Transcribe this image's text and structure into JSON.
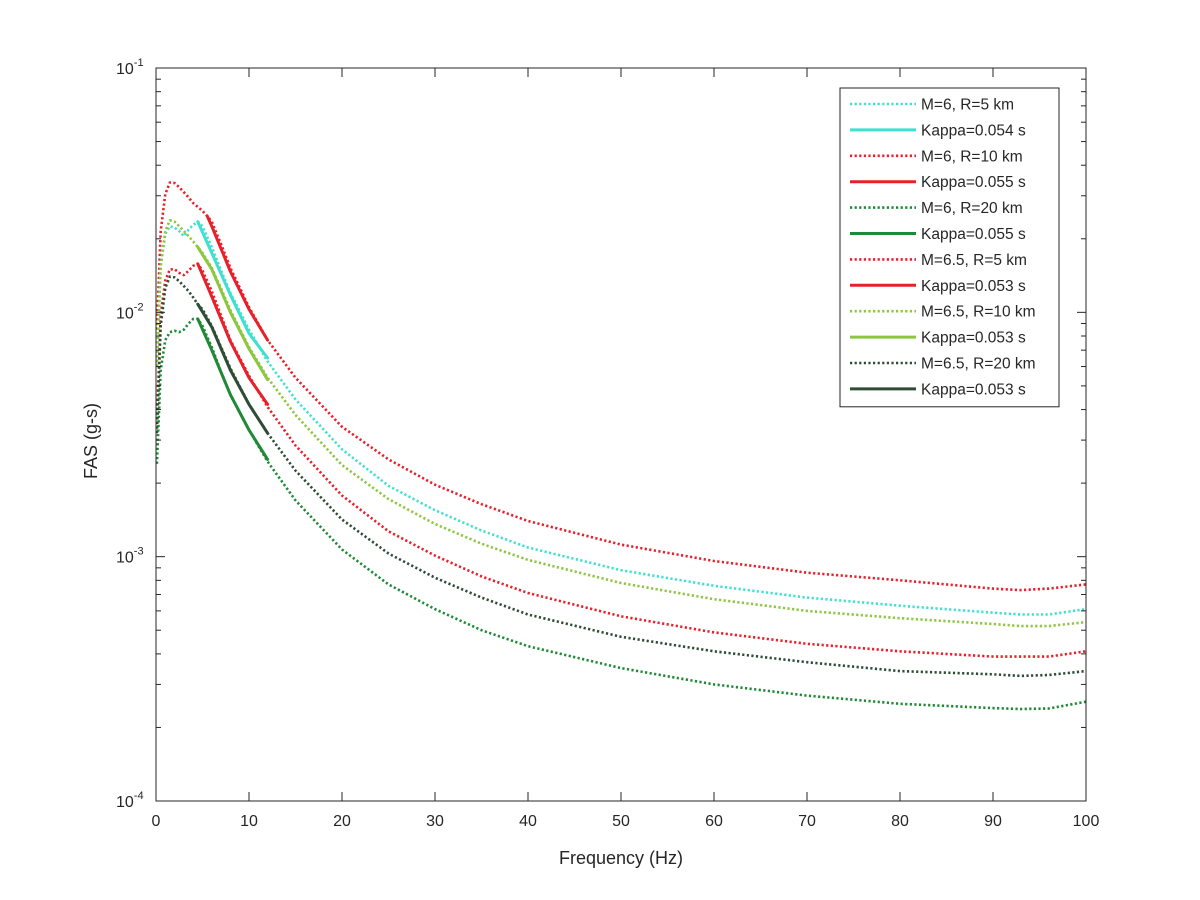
{
  "chart_data": {
    "type": "line",
    "title": "",
    "xlabel": "Frequency (Hz)",
    "ylabel": "FAS (g-s)",
    "yscale": "log",
    "xlim": [
      0,
      100
    ],
    "ylim": [
      0.0001,
      0.1
    ],
    "xticks": [
      0,
      10,
      20,
      30,
      40,
      50,
      60,
      70,
      80,
      90,
      100
    ],
    "xtick_labels": [
      "0",
      "10",
      "20",
      "30",
      "40",
      "50",
      "60",
      "70",
      "80",
      "90",
      "100"
    ],
    "yticks": [
      {
        "value": 0.0001,
        "base": "10",
        "exp": "-4"
      },
      {
        "value": 0.001,
        "base": "10",
        "exp": "-3"
      },
      {
        "value": 0.01,
        "base": "10",
        "exp": "-2"
      },
      {
        "value": 0.1,
        "base": "10",
        "exp": "-1"
      }
    ],
    "legend_position": "top-right",
    "series": [
      {
        "name": "M=6, R=5 km",
        "color": "#40E0D0",
        "style": "dotted",
        "x": [
          0.1,
          0.5,
          1,
          1.5,
          2,
          2.5,
          3,
          3.5,
          4,
          4.5,
          5,
          6,
          7,
          8,
          10,
          12,
          15,
          20,
          25,
          30,
          35,
          40,
          50,
          60,
          70,
          80,
          90,
          93,
          96,
          100
        ],
        "y": [
          0.006,
          0.0155,
          0.021,
          0.0225,
          0.0222,
          0.0215,
          0.0205,
          0.0218,
          0.0228,
          0.0235,
          0.0225,
          0.0185,
          0.0148,
          0.012,
          0.0085,
          0.0063,
          0.0044,
          0.00275,
          0.00195,
          0.00155,
          0.00128,
          0.00109,
          0.00088,
          0.00076,
          0.00068,
          0.00063,
          0.00059,
          0.00058,
          0.00058,
          0.00061
        ]
      },
      {
        "name": "Kappa=0.054 s",
        "color": "#40E0D0",
        "style": "solid",
        "x": [
          4.5,
          6,
          8,
          10,
          12
        ],
        "y": [
          0.0235,
          0.0175,
          0.0118,
          0.0082,
          0.0065
        ]
      },
      {
        "name": "M=6, R=10 km",
        "color": "#E8202A",
        "style": "dotted",
        "x": [
          0.1,
          0.5,
          1,
          1.5,
          2,
          2.5,
          3,
          3.5,
          4,
          4.5,
          5,
          6,
          7,
          8,
          10,
          12,
          15,
          20,
          25,
          30,
          35,
          40,
          50,
          60,
          70,
          80,
          90,
          93,
          96,
          100
        ],
        "y": [
          0.0035,
          0.0098,
          0.0135,
          0.015,
          0.015,
          0.0145,
          0.0142,
          0.0148,
          0.0155,
          0.0158,
          0.0148,
          0.0122,
          0.0097,
          0.0077,
          0.0055,
          0.0041,
          0.00285,
          0.00178,
          0.00127,
          0.00101,
          0.00083,
          0.00071,
          0.00057,
          0.00049,
          0.00044,
          0.00041,
          0.00039,
          0.00039,
          0.00039,
          0.00041
        ]
      },
      {
        "name": "Kappa=0.055 s",
        "color": "#E8202A",
        "style": "solid",
        "x": [
          4.5,
          6,
          8,
          10,
          12
        ],
        "y": [
          0.0158,
          0.0116,
          0.0076,
          0.0054,
          0.0042
        ]
      },
      {
        "name": "M=6, R=20 km",
        "color": "#1E8A36",
        "style": "dotted",
        "x": [
          0.1,
          0.5,
          1,
          1.5,
          2,
          2.5,
          3,
          3.5,
          4,
          4.5,
          5,
          6,
          7,
          8,
          10,
          12,
          15,
          20,
          25,
          30,
          35,
          40,
          50,
          60,
          70,
          80,
          90,
          93,
          96,
          100
        ],
        "y": [
          0.0024,
          0.0058,
          0.0077,
          0.0083,
          0.0084,
          0.0083,
          0.0085,
          0.009,
          0.0094,
          0.0094,
          0.0088,
          0.0072,
          0.0057,
          0.0046,
          0.0033,
          0.00245,
          0.0017,
          0.00107,
          0.00077,
          0.00061,
          0.0005,
          0.00043,
          0.00035,
          0.0003,
          0.00027,
          0.00025,
          0.00024,
          0.000238,
          0.000239,
          0.000255
        ]
      },
      {
        "name": "Kappa=0.055 s",
        "color": "#1E8A36",
        "style": "solid",
        "x": [
          4.5,
          6,
          8,
          10,
          12
        ],
        "y": [
          0.0094,
          0.007,
          0.0046,
          0.0033,
          0.0025
        ]
      },
      {
        "name": "M=6.5, R=5 km",
        "color": "#E8202A",
        "style": "dotted",
        "x": [
          0.1,
          0.5,
          1,
          1.5,
          2,
          2.5,
          3,
          3.5,
          4,
          4.5,
          5,
          5.5,
          6,
          7,
          8,
          10,
          12,
          15,
          20,
          25,
          30,
          35,
          40,
          50,
          60,
          70,
          80,
          90,
          93,
          96,
          100
        ],
        "y": [
          0.0085,
          0.0215,
          0.0305,
          0.034,
          0.0338,
          0.0325,
          0.031,
          0.0295,
          0.028,
          0.027,
          0.026,
          0.0248,
          0.0235,
          0.019,
          0.0152,
          0.0105,
          0.0077,
          0.0054,
          0.0034,
          0.0025,
          0.00197,
          0.00164,
          0.0014,
          0.00112,
          0.00096,
          0.00086,
          0.0008,
          0.00074,
          0.00073,
          0.00074,
          0.00077
        ]
      },
      {
        "name": "Kappa=0.053 s",
        "color": "#E8202A",
        "style": "solid",
        "x": [
          5.5,
          6,
          7,
          8,
          10,
          12
        ],
        "y": [
          0.0248,
          0.0225,
          0.0182,
          0.0147,
          0.0103,
          0.0077
        ]
      },
      {
        "name": "M=6.5, R=10 km",
        "color": "#8DC63F",
        "style": "dotted",
        "x": [
          0.1,
          0.5,
          1,
          1.5,
          2,
          2.5,
          3,
          3.5,
          4,
          4.5,
          5,
          6,
          7,
          8,
          10,
          12,
          15,
          20,
          25,
          30,
          35,
          40,
          50,
          60,
          70,
          80,
          90,
          93,
          96,
          100
        ],
        "y": [
          0.006,
          0.0155,
          0.0215,
          0.0238,
          0.0235,
          0.0225,
          0.0215,
          0.0205,
          0.0195,
          0.0185,
          0.0175,
          0.0152,
          0.0125,
          0.0102,
          0.0072,
          0.0054,
          0.0038,
          0.00237,
          0.00172,
          0.00136,
          0.00113,
          0.00097,
          0.00078,
          0.00067,
          0.0006,
          0.00056,
          0.00053,
          0.00052,
          0.00052,
          0.00054
        ]
      },
      {
        "name": "Kappa=0.053 s",
        "color": "#8DC63F",
        "style": "solid",
        "x": [
          4.5,
          6,
          8,
          10,
          12
        ],
        "y": [
          0.0185,
          0.015,
          0.01,
          0.0071,
          0.0053
        ]
      },
      {
        "name": "M=6.5, R=20 km",
        "color": "#2E4D36",
        "style": "dotted",
        "x": [
          0.1,
          0.5,
          1,
          1.5,
          2,
          2.5,
          3,
          3.5,
          4,
          4.5,
          5,
          6,
          7,
          8,
          10,
          12,
          15,
          20,
          25,
          30,
          35,
          40,
          50,
          60,
          70,
          80,
          90,
          93,
          96,
          100
        ],
        "y": [
          0.0032,
          0.0088,
          0.0126,
          0.014,
          0.0139,
          0.0134,
          0.0128,
          0.0122,
          0.0115,
          0.0108,
          0.0103,
          0.0088,
          0.0072,
          0.0059,
          0.0042,
          0.0032,
          0.00225,
          0.00142,
          0.00103,
          0.00082,
          0.00068,
          0.00058,
          0.00047,
          0.00041,
          0.00037,
          0.00034,
          0.00033,
          0.000325,
          0.000328,
          0.00034
        ]
      },
      {
        "name": "Kappa=0.053 s",
        "color": "#2E4D36",
        "style": "solid",
        "x": [
          4.5,
          6,
          8,
          10,
          12
        ],
        "y": [
          0.0108,
          0.0087,
          0.0058,
          0.0042,
          0.0032
        ]
      }
    ]
  }
}
